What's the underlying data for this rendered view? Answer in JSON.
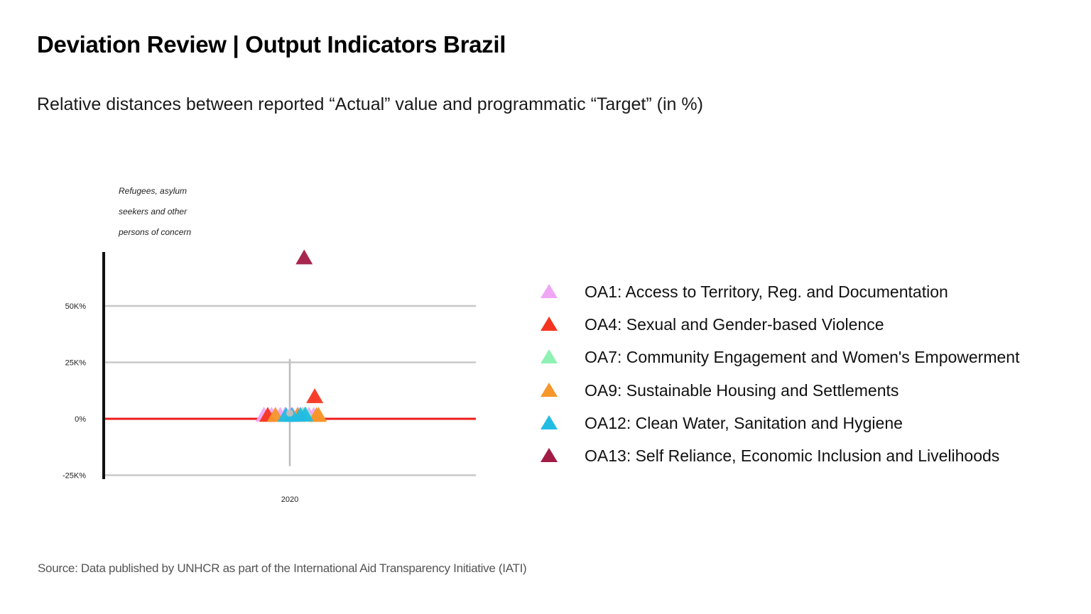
{
  "header": {
    "title": "Deviation Review | Output Indicators Brazil",
    "subtitle": "Relative distances between reported “Actual” value and programmatic “Target” (in %)"
  },
  "footer": {
    "source": "Source: Data published by UNHCR as part of the International Aid Transparency Initiative (IATI)"
  },
  "colors": {
    "OA1": "#f0a6f5",
    "OA4": "#f5341f",
    "OA7": "#8ff2b3",
    "OA9": "#f7962a",
    "OA12": "#22bce3",
    "OA13": "#a11b45",
    "zero_line": "#ee1c1c",
    "grid": "#c8c8c8",
    "axis": "#111111",
    "median": "#bdbdbd"
  },
  "chart_data": {
    "type": "scatter",
    "population_label_lines": [
      "Refugees, asylum",
      "seekers and other",
      "persons of concern"
    ],
    "x_categories": [
      "2020"
    ],
    "ylim": [
      -25000,
      75000
    ],
    "yticks": [
      {
        "value": 50000,
        "label": "50K%"
      },
      {
        "value": 25000,
        "label": "25K%"
      },
      {
        "value": 0,
        "label": "0%"
      },
      {
        "value": -25000,
        "label": "-25K%"
      }
    ],
    "grid": true,
    "zero_line": true,
    "boxplot": {
      "median": 2500,
      "upper": 26500,
      "lower": -21000
    },
    "legend_position": "right",
    "series": [
      {
        "name": "OA1: Access to Territory, Reg. and Documentation",
        "key": "OA1",
        "jitter": [
          -0.27,
          -0.23,
          -0.19,
          -0.15,
          -0.1,
          -0.05,
          0.0,
          0.03,
          0.09,
          0.13,
          0.2,
          0.25
        ],
        "values": [
          300,
          300,
          300,
          300,
          300,
          300,
          300,
          300,
          300,
          300,
          300,
          300
        ]
      },
      {
        "name": "OA4: Sexual and Gender-based Violence",
        "key": "OA4",
        "jitter": [
          -0.23,
          0.26
        ],
        "values": [
          200,
          8500
        ]
      },
      {
        "name": "OA7: Community Engagement and Women's Empowerment",
        "key": "OA7",
        "jitter": [
          0.14,
          0.17
        ],
        "values": [
          300,
          400
        ]
      },
      {
        "name": "OA9: Sustainable Housing and Settlements",
        "key": "OA9",
        "jitter": [
          -0.15,
          0.08,
          0.28,
          0.3
        ],
        "values": [
          200,
          200,
          200,
          200
        ]
      },
      {
        "name": "OA12: Clean Water, Sanitation and Hygiene",
        "key": "OA12",
        "jitter": [
          -0.04,
          0.02,
          0.11,
          0.16
        ],
        "values": [
          200,
          200,
          300,
          400
        ]
      },
      {
        "name": "OA13: Self Reliance, Economic Inclusion and Livelihoods",
        "key": "OA13",
        "jitter": [
          0.15
        ],
        "values": [
          70000
        ]
      }
    ]
  }
}
